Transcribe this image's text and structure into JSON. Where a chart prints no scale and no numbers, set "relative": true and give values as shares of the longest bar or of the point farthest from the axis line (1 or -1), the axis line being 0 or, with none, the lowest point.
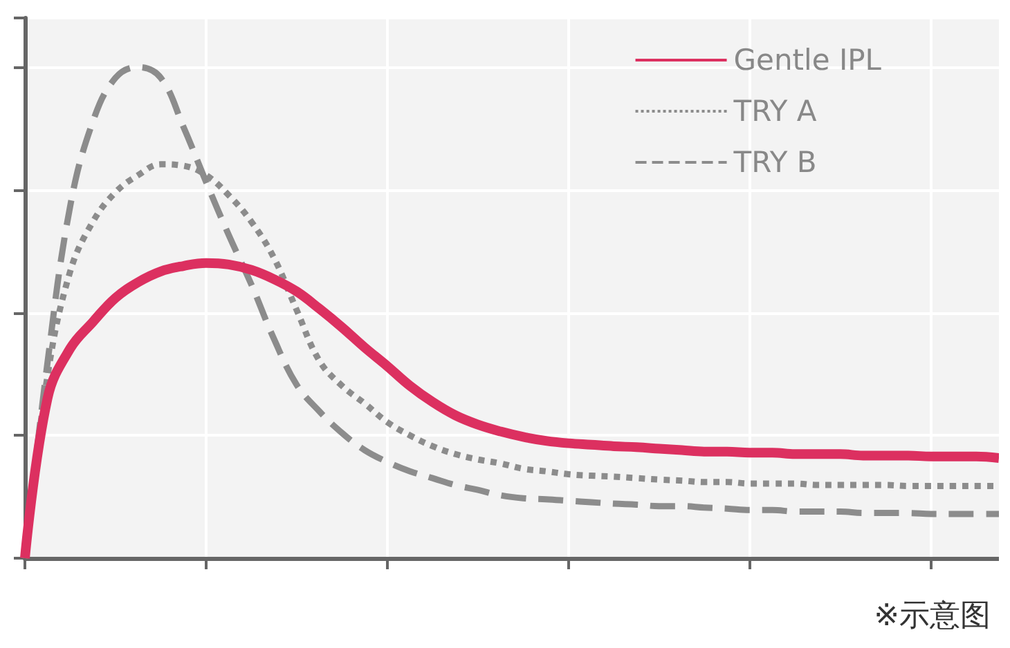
{
  "chart_data": {
    "type": "line",
    "relative": true,
    "categories": [
      null,
      null,
      null,
      null,
      null,
      null,
      null,
      null,
      null,
      null,
      null,
      null,
      null,
      null,
      null,
      null,
      null,
      null,
      null,
      null,
      null,
      null,
      null,
      null,
      null,
      null,
      null,
      null,
      null,
      null,
      null,
      null,
      null,
      null,
      null,
      null,
      null,
      null,
      null,
      null,
      null,
      null,
      null,
      null
    ],
    "series": [
      {
        "name": "Gentle IPL",
        "color": "#dc3060",
        "line_style": "solid",
        "values": [
          0,
          0.326,
          0.427,
          0.481,
          0.53,
          0.562,
          0.584,
          0.595,
          0.601,
          0.598,
          0.587,
          0.568,
          0.543,
          0.508,
          0.47,
          0.429,
          0.391,
          0.351,
          0.318,
          0.291,
          0.272,
          0.258,
          0.247,
          0.239,
          0.234,
          0.231,
          0.228,
          0.226,
          0.223,
          0.22,
          0.217,
          0.217,
          0.215,
          0.215,
          0.212,
          0.212,
          0.212,
          0.209,
          0.209,
          0.209,
          0.207,
          0.207,
          0.207,
          0.204
        ]
      },
      {
        "name": "TRY A",
        "color": "#8c8c8c",
        "line_style": "dotted",
        "values": [
          0,
          0.372,
          0.584,
          0.685,
          0.745,
          0.78,
          0.802,
          0.799,
          0.78,
          0.739,
          0.685,
          0.611,
          0.505,
          0.402,
          0.351,
          0.315,
          0.277,
          0.25,
          0.228,
          0.212,
          0.201,
          0.193,
          0.182,
          0.177,
          0.171,
          0.168,
          0.166,
          0.163,
          0.16,
          0.158,
          0.155,
          0.155,
          0.152,
          0.152,
          0.152,
          0.149,
          0.149,
          0.149,
          0.149,
          0.147,
          0.147,
          0.147,
          0.147,
          0.147
        ]
      },
      {
        "name": "TRY B",
        "color": "#8c8c8c",
        "line_style": "dashed",
        "values": [
          0,
          0.399,
          0.717,
          0.889,
          0.978,
          1,
          0.978,
          0.878,
          0.766,
          0.658,
          0.557,
          0.446,
          0.353,
          0.299,
          0.255,
          0.22,
          0.196,
          0.177,
          0.163,
          0.149,
          0.139,
          0.128,
          0.122,
          0.12,
          0.117,
          0.114,
          0.111,
          0.109,
          0.106,
          0.106,
          0.103,
          0.101,
          0.098,
          0.098,
          0.095,
          0.095,
          0.095,
          0.092,
          0.092,
          0.092,
          0.09,
          0.09,
          0.09,
          0.09
        ]
      }
    ],
    "grid": true,
    "legend": "top right",
    "marker": "none",
    "annotations": [
      "※示意图"
    ]
  }
}
